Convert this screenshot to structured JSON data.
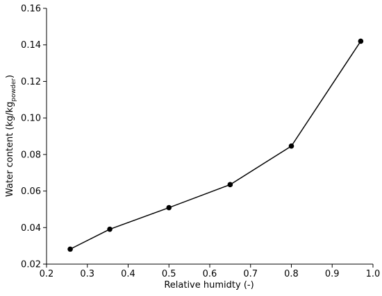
{
  "chart_data": {
    "type": "line",
    "title": "",
    "xlabel": "Relative humidty (-)",
    "ylabel": {
      "main": "Water content (kg/kg",
      "subscript": "powder",
      "suffix": ")"
    },
    "xlim": [
      0.2,
      1.0
    ],
    "ylim": [
      0.02,
      0.16
    ],
    "x_ticks": [
      "0.2",
      "0.3",
      "0.4",
      "0.5",
      "0.6",
      "0.7",
      "0.8",
      "0.9",
      "1.0"
    ],
    "y_ticks": [
      "0.02",
      "0.04",
      "0.06",
      "0.08",
      "0.10",
      "0.12",
      "0.14",
      "0.16"
    ],
    "grid": false,
    "legend": "none",
    "colors": {
      "line": "#000000",
      "marker": "#000000",
      "axis": "#000000"
    },
    "series": [
      {
        "x": [
          0.258,
          0.355,
          0.5,
          0.65,
          0.8,
          0.97
        ],
        "y": [
          0.0282,
          0.0391,
          0.0509,
          0.0635,
          0.0846,
          0.142
        ]
      }
    ]
  }
}
